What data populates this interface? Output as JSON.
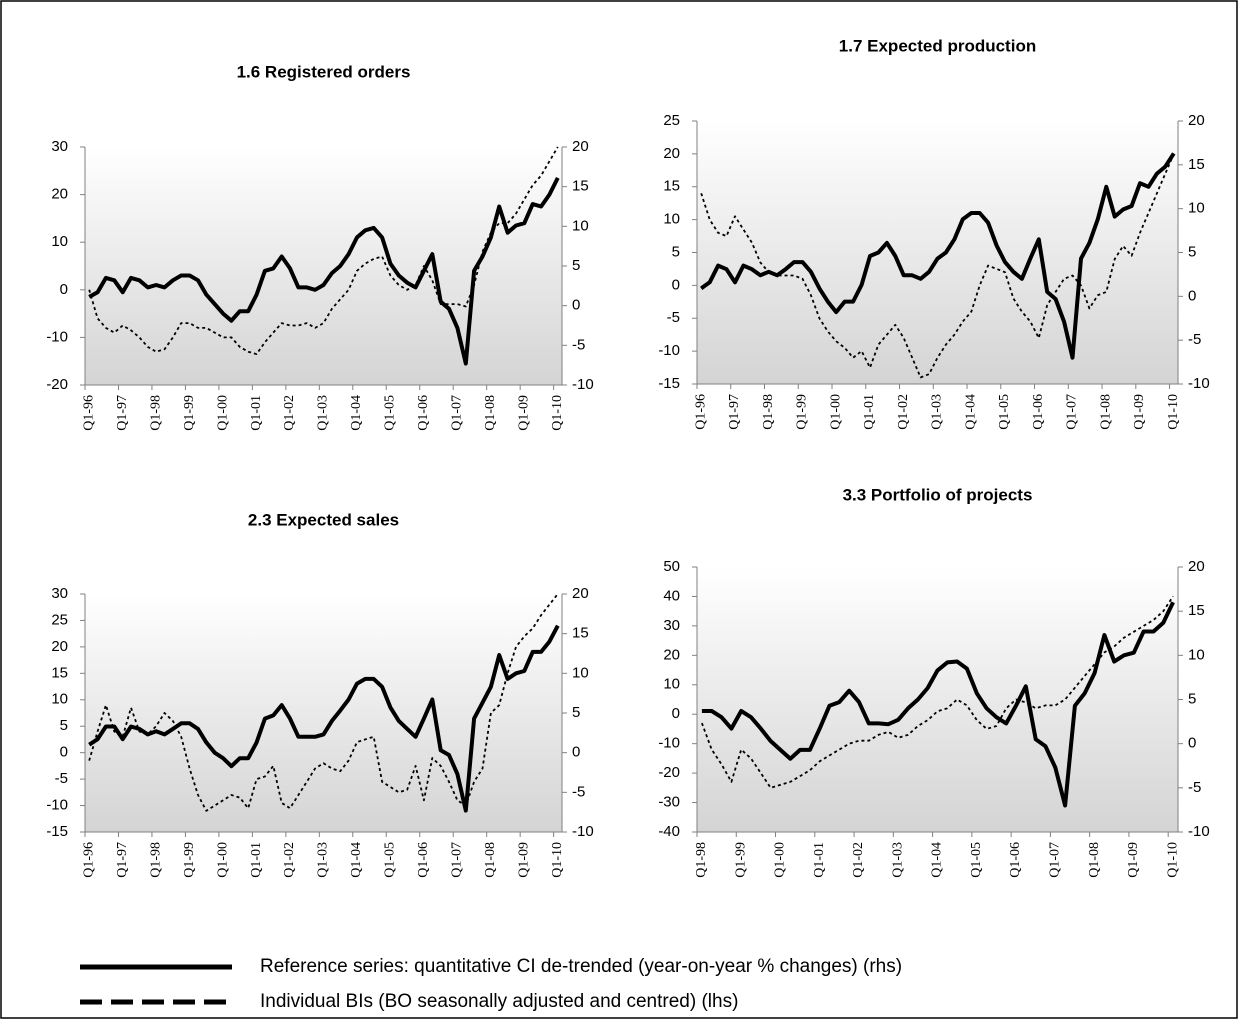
{
  "chart_data": [
    {
      "type": "line",
      "title": "1.6 Registered orders",
      "categories": [
        "Q1-96",
        null,
        null,
        null,
        "Q1-97",
        null,
        null,
        null,
        "Q1-98",
        null,
        null,
        null,
        "Q1-99",
        null,
        null,
        null,
        "Q1-00",
        null,
        null,
        null,
        "Q1-01",
        null,
        null,
        null,
        "Q1-02",
        null,
        null,
        null,
        "Q1-03",
        null,
        null,
        null,
        "Q1-04",
        null,
        null,
        null,
        "Q1-05",
        null,
        null,
        null,
        "Q1-06",
        null,
        null,
        null,
        "Q1-07",
        null,
        null,
        null,
        "Q1-08",
        null,
        null,
        null,
        "Q1-09",
        null,
        null,
        null,
        "Q1-10"
      ],
      "ylim": [
        -20,
        30
      ],
      "yticks": [
        -20,
        -10,
        0,
        10,
        20,
        30
      ],
      "y2lim": [
        -10,
        20
      ],
      "y2ticks": [
        -10,
        -5,
        0,
        5,
        10,
        15,
        20
      ],
      "series": [
        {
          "name": "Reference series: quantitative CI de-trended (year-on-year % changes) (rhs)",
          "color": "#000000",
          "style": "solid",
          "axis": "y2",
          "values": [
            1.1,
            1.7,
            3.5,
            3.2,
            1.7,
            3.5,
            3.2,
            2.3,
            2.6,
            2.3,
            3.2,
            3.8,
            3.8,
            3.2,
            1.4,
            0.2,
            -1,
            -1.9,
            -0.7,
            -0.7,
            1.4,
            4.4,
            4.7,
            6.2,
            4.7,
            2.3,
            2.3,
            2,
            2.6,
            4.1,
            5,
            6.5,
            8.6,
            9.5,
            9.8,
            8.6,
            5.3,
            3.8,
            2.9,
            2.3,
            4.4,
            6.5,
            0.5,
            -0.4,
            -2.8,
            -7.3,
            4.4,
            6.2,
            8.6,
            12.5,
            9.2,
            10.1,
            10.4,
            12.8,
            12.5,
            14,
            16.1
          ]
        },
        {
          "name": "Individual BIs (BO seasonally adjusted and centred) (lhs)",
          "color": "#000000",
          "style": "dashed",
          "axis": "y",
          "values": [
            0,
            -6,
            -8,
            -9,
            -7.5,
            -8.5,
            -10,
            -12,
            -13,
            -12.5,
            -10,
            -7,
            -7,
            -8,
            -8,
            -9,
            -10,
            -10,
            -12,
            -13,
            -13.5,
            -11,
            -9,
            -7,
            -7.5,
            -7.5,
            -7,
            -8,
            -7,
            -4,
            -2,
            0,
            4,
            5.5,
            6.5,
            7,
            3,
            1,
            0,
            1,
            5,
            2,
            -3,
            -3,
            -3,
            -3.5,
            1,
            8,
            12,
            14,
            14,
            16,
            19,
            22,
            24,
            27,
            30
          ]
        }
      ]
    },
    {
      "type": "line",
      "title": "1.7 Expected production",
      "categories": [
        "Q1-96",
        null,
        null,
        null,
        "Q1-97",
        null,
        null,
        null,
        "Q1-98",
        null,
        null,
        null,
        "Q1-99",
        null,
        null,
        null,
        "Q1-00",
        null,
        null,
        null,
        "Q1-01",
        null,
        null,
        null,
        "Q1-02",
        null,
        null,
        null,
        "Q1-03",
        null,
        null,
        null,
        "Q1-04",
        null,
        null,
        null,
        "Q1-05",
        null,
        null,
        null,
        "Q1-06",
        null,
        null,
        null,
        "Q1-07",
        null,
        null,
        null,
        "Q1-08",
        null,
        null,
        null,
        "Q1-09",
        null,
        null,
        null,
        "Q1-10"
      ],
      "ylim": [
        -15,
        25
      ],
      "yticks": [
        -15,
        -10,
        -5,
        0,
        5,
        10,
        15,
        20,
        25
      ],
      "y2lim": [
        -10,
        20
      ],
      "y2ticks": [
        -10,
        -5,
        0,
        5,
        10,
        15,
        20
      ],
      "series": [
        {
          "color": "#000000",
          "style": "solid",
          "axis": "y2",
          "values": [
            0.9,
            1.6,
            3.5,
            3.1,
            1.6,
            3.5,
            3.1,
            2.4,
            2.8,
            2.4,
            3.1,
            3.9,
            3.9,
            2.8,
            0.9,
            -0.6,
            -1.8,
            -0.6,
            -0.6,
            1.3,
            4.6,
            5,
            6.1,
            4.6,
            2.4,
            2.4,
            2,
            2.8,
            4.3,
            5,
            6.5,
            8.8,
            9.5,
            9.5,
            8.4,
            5.8,
            3.9,
            2.8,
            2,
            4.3,
            6.5,
            0.5,
            -0.3,
            -2.9,
            -7,
            4.3,
            6.1,
            8.8,
            12.5,
            9.1,
            9.9,
            10.3,
            12.9,
            12.5,
            14,
            14.8,
            16.3
          ]
        },
        {
          "color": "#000000",
          "style": "dashed",
          "axis": "y",
          "values": [
            14,
            10,
            8,
            7.5,
            10.5,
            8.5,
            6.5,
            3.5,
            2,
            1.5,
            1.5,
            1.5,
            1,
            -1.5,
            -5,
            -7,
            -8.5,
            -9.5,
            -11,
            -10,
            -12.5,
            -9,
            -7.5,
            -6,
            -8,
            -11,
            -14,
            -13.5,
            -11,
            -9,
            -7.5,
            -5.5,
            -4,
            0,
            3,
            2.5,
            2,
            -2,
            -4,
            -5.5,
            -8,
            -3,
            -1,
            1,
            1.5,
            0,
            -3.5,
            -1.5,
            -1,
            4,
            6,
            4.5,
            8,
            11,
            14,
            17,
            20
          ]
        }
      ]
    },
    {
      "type": "line",
      "title": "2.3 Expected sales",
      "categories": [
        "Q1-96",
        null,
        null,
        null,
        "Q1-97",
        null,
        null,
        null,
        "Q1-98",
        null,
        null,
        null,
        "Q1-99",
        null,
        null,
        null,
        "Q1-00",
        null,
        null,
        null,
        "Q1-01",
        null,
        null,
        null,
        "Q1-02",
        null,
        null,
        null,
        "Q1-03",
        null,
        null,
        null,
        "Q1-04",
        null,
        null,
        null,
        "Q1-05",
        null,
        null,
        null,
        "Q1-06",
        null,
        null,
        null,
        "Q1-07",
        null,
        null,
        null,
        "Q1-08",
        null,
        null,
        null,
        "Q1-09",
        null,
        null,
        null,
        "Q1-10"
      ],
      "ylim": [
        -15,
        30
      ],
      "yticks": [
        -15,
        -10,
        -5,
        0,
        5,
        10,
        15,
        20,
        25,
        30
      ],
      "y2lim": [
        -10,
        20
      ],
      "y2ticks": [
        -10,
        -5,
        0,
        5,
        10,
        15,
        20
      ],
      "series": [
        {
          "color": "#000000",
          "style": "solid",
          "axis": "y2",
          "values": [
            1,
            1.7,
            3.3,
            3.3,
            1.7,
            3.3,
            3,
            2.3,
            2.7,
            2.3,
            3,
            3.7,
            3.7,
            3,
            1.3,
            0,
            -0.7,
            -1.7,
            -0.7,
            -0.7,
            1.3,
            4.3,
            4.7,
            6,
            4.3,
            2,
            2,
            2,
            2.3,
            4,
            5.3,
            6.7,
            8.7,
            9.3,
            9.3,
            8.3,
            5.7,
            4,
            3,
            2,
            4.3,
            6.7,
            0.3,
            -0.3,
            -2.7,
            -7.3,
            4.3,
            6.3,
            8.3,
            12.3,
            9.3,
            10,
            10.3,
            12.7,
            12.7,
            14,
            16
          ]
        },
        {
          "color": "#000000",
          "style": "dashed",
          "axis": "y",
          "values": [
            -1.5,
            4,
            9,
            4,
            3,
            8.5,
            4,
            3.5,
            5,
            7.5,
            6,
            3,
            -3,
            -8,
            -11,
            -10,
            -9,
            -8,
            -8.5,
            -10.5,
            -5,
            -4.5,
            -2.5,
            -9.5,
            -10.5,
            -8,
            -5.5,
            -3,
            -2,
            -3,
            -3.5,
            -1.5,
            2,
            2.5,
            3,
            -5.5,
            -6.5,
            -7.5,
            -7,
            -2.5,
            -9,
            -1,
            -2.5,
            -5.5,
            -9,
            -10,
            -5.5,
            -3,
            7.5,
            9,
            15,
            20,
            22,
            23.5,
            26,
            28,
            30
          ]
        }
      ]
    },
    {
      "type": "line",
      "title": "3.3 Portfolio of projects",
      "categories": [
        "Q1-98",
        null,
        null,
        null,
        "Q1-99",
        null,
        null,
        null,
        "Q1-00",
        null,
        null,
        null,
        "Q1-01",
        null,
        null,
        null,
        "Q1-02",
        null,
        null,
        null,
        "Q1-03",
        null,
        null,
        null,
        "Q1-04",
        null,
        null,
        null,
        "Q1-05",
        null,
        null,
        null,
        "Q1-06",
        null,
        null,
        null,
        "Q1-07",
        null,
        null,
        null,
        "Q1-08",
        null,
        null,
        null,
        "Q1-09",
        null,
        null,
        null,
        "Q1-10"
      ],
      "ylim": [
        -40,
        50
      ],
      "yticks": [
        -40,
        -30,
        -20,
        -10,
        0,
        10,
        20,
        30,
        40,
        50
      ],
      "y2lim": [
        -10,
        20
      ],
      "y2ticks": [
        -10,
        -5,
        0,
        5,
        10,
        15,
        20
      ],
      "series": [
        {
          "color": "#000000",
          "style": "solid",
          "axis": "y2",
          "values": [
            3.7,
            3.7,
            3,
            1.7,
            3.7,
            3,
            1.7,
            0.3,
            -0.7,
            -1.7,
            -0.7,
            -0.7,
            1.7,
            4.3,
            4.7,
            6,
            4.7,
            2.3,
            2.3,
            2.2,
            2.7,
            4,
            5,
            6.3,
            8.3,
            9.2,
            9.3,
            8.5,
            5.7,
            4,
            3,
            2.3,
            4.3,
            6.5,
            0.5,
            -0.3,
            -2.7,
            -7,
            4.3,
            5.7,
            8,
            12.3,
            9.3,
            10,
            10.3,
            12.7,
            12.7,
            13.7,
            16
          ]
        },
        {
          "color": "#000000",
          "style": "dashed",
          "axis": "y",
          "values": [
            -3,
            -12,
            -17,
            -23,
            -12,
            -15,
            -20,
            -25,
            -24,
            -23,
            -21,
            -19,
            -16,
            -14,
            -12,
            -10,
            -9,
            -9,
            -7,
            -6,
            -8,
            -7,
            -4,
            -2,
            1,
            2,
            5,
            3,
            -2,
            -5,
            -4,
            2,
            5,
            4,
            2,
            3,
            3,
            5,
            9,
            13,
            17,
            21,
            23,
            26,
            28,
            30,
            32,
            35,
            40
          ]
        }
      ]
    }
  ]
}
